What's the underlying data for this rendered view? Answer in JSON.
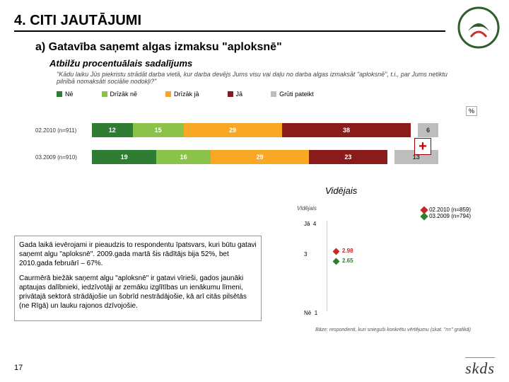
{
  "header": {
    "title": "4. CITI JAUTĀJUMI"
  },
  "subtitle": "a) Gatavība saņemt algas izmaksu \"aploksnē\"",
  "subcaption": "Atbilžu procentuālais sadalījums",
  "question": "\"Kādu laiku Jūs piekristu strādāt darba vietā, kur darba devējs Jums visu vai daļu no darba algas izmaksāt \"aploksnē\", t.i., par Jums netiktu pilnībā nomaksāti sociālie nodokļi?\"",
  "legend": {
    "items": [
      {
        "label": "Nē",
        "color": "#2e7d32"
      },
      {
        "label": "Drīzāk nē",
        "color": "#8bc34a"
      },
      {
        "label": "Drīzāk jā",
        "color": "#f9a825"
      },
      {
        "label": "Jā",
        "color": "#8b1a1a"
      },
      {
        "label": "Grūti pateikt",
        "color": "#bdbdbd"
      }
    ]
  },
  "pct_symbol": "%",
  "bars": {
    "rows": [
      {
        "label": "02.2010 (n=911)",
        "segs": [
          {
            "v": 12,
            "c": "#2e7d32"
          },
          {
            "v": 15,
            "c": "#8bc34a"
          },
          {
            "v": 29,
            "c": "#f9a825"
          },
          {
            "v": 38,
            "c": "#8b1a1a"
          },
          {
            "v": 6,
            "c": "#bdbdbd",
            "light": true
          }
        ]
      },
      {
        "label": "03.2009 (n=910)",
        "segs": [
          {
            "v": 19,
            "c": "#2e7d32"
          },
          {
            "v": 16,
            "c": "#8bc34a"
          },
          {
            "v": 29,
            "c": "#f9a825"
          },
          {
            "v": 23,
            "c": "#8b1a1a"
          },
          {
            "v": 13,
            "c": "#bdbdbd",
            "light": true
          }
        ]
      }
    ]
  },
  "plus": "+",
  "vidcap": "Vidējais",
  "commentary": {
    "p1": "Gada laikā ievērojami ir pieaudzis to respondentu īpatsvars, kuri būtu gatavi saņemt algu \"aploksnē\". 2009.gada martā šis rādītājs bija 52%, bet 2010.gada februārī – 67%.",
    "p2": "Caurmērā biežāk saņemt algu \"aploksnē\" ir gatavi vīrieši, gados jaunāki aptaujas dalībnieki, iedzīvotāji ar zemāku izglītības un ienākumu līmeni, privātajā sektorā strādājošie un šobrīd nestrādājošie, kā arī citās pilsētās (ne Rīgā) un lauku rajonos dzīvojošie."
  },
  "scatter": {
    "ylabel_top": "Vidējais",
    "ylabel_ja": "Jā",
    "ylabel_ne": "Nē",
    "tick4": "4",
    "tick3": "3",
    "tick1": "1",
    "points": [
      {
        "val": "2.98",
        "color": "#c62828",
        "legend": "02.2010 (n=859)",
        "y": 2.98
      },
      {
        "val": "2.65",
        "color": "#2e7d32",
        "legend": "03.2009 (n=794)",
        "y": 2.65
      }
    ],
    "base": "Bāze: respondenti, kuri snieguši konkrētu vērtējumu (skat. \"n=\" grafikā)"
  },
  "pagenum": "17",
  "footer": "skds"
}
